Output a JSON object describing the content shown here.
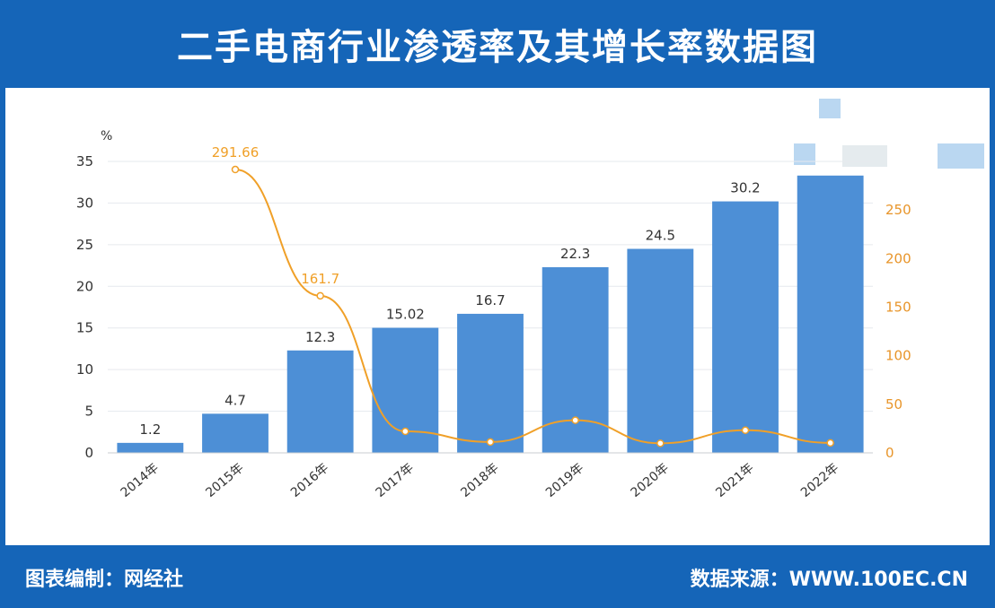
{
  "header": {
    "title": "二手电商行业渗透率及其增长率数据图"
  },
  "footer": {
    "left": "图表编制：网经社",
    "right": "数据来源：WWW.100EC.CN"
  },
  "colors": {
    "bar": "#4d8fd6",
    "line": "#f0a028",
    "axis_right": "#e8952a",
    "background": "#1565b8"
  },
  "chart_data": {
    "type": "bar",
    "title": "二手电商行业渗透率及其增长率数据图",
    "categories": [
      "2014年",
      "2015年",
      "2016年",
      "2017年",
      "2018年",
      "2019年",
      "2020年",
      "2021年",
      "2022年"
    ],
    "y_left_unit": "%",
    "y_left_ticks": [
      "0",
      "5",
      "10",
      "15",
      "20",
      "25",
      "30",
      "35"
    ],
    "y_left_range": [
      0,
      35
    ],
    "y_right_ticks": [
      "0",
      "50",
      "100",
      "150",
      "200",
      "250"
    ],
    "y_right_range": [
      0,
      300
    ],
    "bars": {
      "values": [
        1.2,
        4.7,
        12.3,
        15.02,
        16.7,
        22.3,
        24.5,
        30.2,
        33.3
      ],
      "labels": [
        "1.2",
        "4.7",
        "12.3",
        "15.02",
        "16.7",
        "22.3",
        "24.5",
        "30.2",
        ""
      ]
    },
    "line": {
      "values": [
        null,
        291.66,
        161.7,
        22.11,
        11.18,
        33.53,
        9.86,
        23.26,
        10.26
      ],
      "labels": [
        "",
        "291.66",
        "161.7",
        "",
        "",
        "",
        "",
        "",
        ""
      ]
    },
    "grid": true
  }
}
